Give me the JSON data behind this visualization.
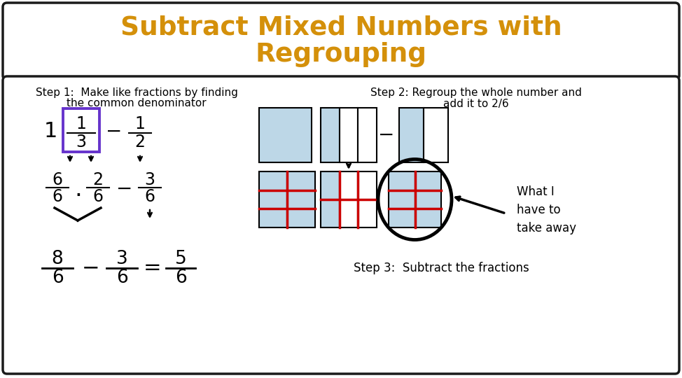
{
  "title_line1": "Subtract Mixed Numbers with",
  "title_line2": "Regrouping",
  "title_color": "#D4900A",
  "bg_color": "#ffffff",
  "border_color": "#1a1a1a",
  "step1_line1": "Step 1:  Make like fractions by finding",
  "step1_line2": "the common denominator",
  "step2_line1": "Step 2: Regroup the whole number and",
  "step2_line2": "add it to 2/6",
  "step3_text": "Step 3:  Subtract the fractions",
  "annotation_text": "What I\nhave to\ntake away",
  "light_blue": "#bdd7e7",
  "purple_border": "#6633cc",
  "red_line": "#cc0000",
  "figw": 9.74,
  "figh": 5.4,
  "dpi": 100
}
